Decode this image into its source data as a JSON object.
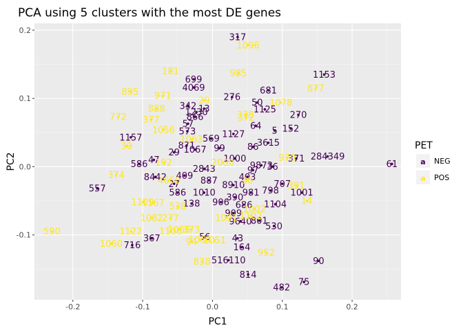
{
  "chart_data": {
    "type": "scatter",
    "title": "PCA using 5 clusters with the most DE genes",
    "xlabel": "PC1",
    "ylabel": "PC2",
    "xlim": [
      -0.255,
      0.27
    ],
    "ylim": [
      -0.195,
      0.21
    ],
    "x_ticks": [
      -0.2,
      -0.1,
      0.0,
      0.1,
      0.2
    ],
    "x_tick_labels": [
      "-0.2",
      "-0.1",
      "0.0",
      "0.1",
      "0.2"
    ],
    "y_ticks": [
      -0.1,
      0.0,
      0.1,
      0.2
    ],
    "y_tick_labels": [
      "-0.1",
      "0.0",
      "0.1",
      "0.2"
    ],
    "grid": true,
    "legend": {
      "title": "PET",
      "position": "right"
    },
    "colors": {
      "NEG": "#440154",
      "POS": "#fde725",
      "panel": "#ebebeb",
      "grid_major": "#ffffff",
      "grid_minor": "#f5f5f5"
    },
    "series": [
      {
        "name": "NEG",
        "points": [
          {
            "x": 0.036,
            "y": 0.19,
            "label": "317"
          },
          {
            "x": 0.16,
            "y": 0.135,
            "label": "1153"
          },
          {
            "x": -0.027,
            "y": 0.128,
            "label": "699"
          },
          {
            "x": -0.027,
            "y": 0.116,
            "label": "4069"
          },
          {
            "x": 0.028,
            "y": 0.102,
            "label": "276"
          },
          {
            "x": 0.08,
            "y": 0.112,
            "label": "681"
          },
          {
            "x": 0.064,
            "y": 0.094,
            "label": "50"
          },
          {
            "x": -0.035,
            "y": 0.089,
            "label": "342"
          },
          {
            "x": -0.012,
            "y": 0.085,
            "label": "13"
          },
          {
            "x": -0.023,
            "y": 0.08,
            "label": "1230"
          },
          {
            "x": 0.075,
            "y": 0.084,
            "label": "1125"
          },
          {
            "x": 0.123,
            "y": 0.076,
            "label": "270"
          },
          {
            "x": -0.025,
            "y": 0.073,
            "label": "866"
          },
          {
            "x": -0.035,
            "y": 0.063,
            "label": "57"
          },
          {
            "x": 0.062,
            "y": 0.06,
            "label": "64"
          },
          {
            "x": 0.112,
            "y": 0.056,
            "label": "152"
          },
          {
            "x": 0.089,
            "y": 0.053,
            "label": "5"
          },
          {
            "x": -0.036,
            "y": 0.052,
            "label": "573"
          },
          {
            "x": 0.03,
            "y": 0.048,
            "label": "1127"
          },
          {
            "x": -0.117,
            "y": 0.043,
            "label": "1157"
          },
          {
            "x": -0.002,
            "y": 0.041,
            "label": "569"
          },
          {
            "x": -0.037,
            "y": 0.031,
            "label": "871"
          },
          {
            "x": 0.08,
            "y": 0.035,
            "label": "3615"
          },
          {
            "x": 0.058,
            "y": 0.029,
            "label": "86"
          },
          {
            "x": -0.025,
            "y": 0.025,
            "label": "1067"
          },
          {
            "x": 0.01,
            "y": 0.027,
            "label": "99"
          },
          {
            "x": -0.055,
            "y": 0.021,
            "label": "29"
          },
          {
            "x": 0.032,
            "y": 0.012,
            "label": "1000"
          },
          {
            "x": 0.165,
            "y": 0.015,
            "label": "284349"
          },
          {
            "x": 0.12,
            "y": 0.012,
            "label": "371"
          },
          {
            "x": 0.257,
            "y": 0.004,
            "label": "61"
          },
          {
            "x": -0.084,
            "y": 0.01,
            "label": "47"
          },
          {
            "x": -0.105,
            "y": 0.004,
            "label": "586"
          },
          {
            "x": 0.07,
            "y": 0.002,
            "label": "9873"
          },
          {
            "x": 0.086,
            "y": 0.0,
            "label": "36"
          },
          {
            "x": -0.012,
            "y": -0.003,
            "label": "2843"
          },
          {
            "x": 0.058,
            "y": -0.005,
            "label": "97"
          },
          {
            "x": -0.082,
            "y": -0.015,
            "label": "8442"
          },
          {
            "x": -0.04,
            "y": -0.013,
            "label": "409"
          },
          {
            "x": -0.055,
            "y": -0.025,
            "label": "27"
          },
          {
            "x": -0.165,
            "y": -0.032,
            "label": "557"
          },
          {
            "x": -0.005,
            "y": -0.02,
            "label": "887"
          },
          {
            "x": 0.05,
            "y": -0.015,
            "label": "403"
          },
          {
            "x": 0.03,
            "y": -0.027,
            "label": "8910"
          },
          {
            "x": 0.083,
            "y": -0.035,
            "label": "798"
          },
          {
            "x": 0.1,
            "y": -0.025,
            "label": "707"
          },
          {
            "x": 0.128,
            "y": -0.038,
            "label": "1001"
          },
          {
            "x": 0.055,
            "y": -0.038,
            "label": "981"
          },
          {
            "x": -0.05,
            "y": -0.038,
            "label": "586"
          },
          {
            "x": -0.012,
            "y": -0.038,
            "label": "1010"
          },
          {
            "x": 0.032,
            "y": -0.045,
            "label": "390"
          },
          {
            "x": 0.09,
            "y": -0.055,
            "label": "1104"
          },
          {
            "x": -0.03,
            "y": -0.054,
            "label": "138"
          },
          {
            "x": 0.012,
            "y": -0.052,
            "label": "906"
          },
          {
            "x": 0.045,
            "y": -0.056,
            "label": "686"
          },
          {
            "x": 0.03,
            "y": -0.068,
            "label": "909"
          },
          {
            "x": 0.04,
            "y": -0.08,
            "label": "9640"
          },
          {
            "x": 0.067,
            "y": -0.079,
            "label": "801"
          },
          {
            "x": 0.088,
            "y": -0.087,
            "label": "530"
          },
          {
            "x": -0.087,
            "y": -0.105,
            "label": "367"
          },
          {
            "x": -0.011,
            "y": -0.103,
            "label": "56"
          },
          {
            "x": 0.036,
            "y": -0.105,
            "label": "43"
          },
          {
            "x": -0.115,
            "y": -0.115,
            "label": "716"
          },
          {
            "x": 0.042,
            "y": -0.118,
            "label": "164"
          },
          {
            "x": 0.023,
            "y": -0.137,
            "label": "516110"
          },
          {
            "x": 0.152,
            "y": -0.138,
            "label": "90"
          },
          {
            "x": 0.051,
            "y": -0.158,
            "label": "814"
          },
          {
            "x": 0.131,
            "y": -0.169,
            "label": "75"
          },
          {
            "x": 0.099,
            "y": -0.177,
            "label": "482"
          }
        ]
      },
      {
        "name": "POS",
        "points": [
          {
            "x": 0.051,
            "y": 0.178,
            "label": "1096"
          },
          {
            "x": -0.06,
            "y": 0.14,
            "label": "181"
          },
          {
            "x": 0.037,
            "y": 0.137,
            "label": "985"
          },
          {
            "x": -0.118,
            "y": 0.11,
            "label": "895"
          },
          {
            "x": -0.071,
            "y": 0.104,
            "label": "971"
          },
          {
            "x": 0.148,
            "y": 0.115,
            "label": "877"
          },
          {
            "x": -0.012,
            "y": 0.097,
            "label": "29"
          },
          {
            "x": 0.098,
            "y": 0.094,
            "label": "1078"
          },
          {
            "x": -0.08,
            "y": 0.085,
            "label": "888"
          },
          {
            "x": -0.135,
            "y": 0.073,
            "label": "772"
          },
          {
            "x": -0.088,
            "y": 0.069,
            "label": "377"
          },
          {
            "x": 0.047,
            "y": 0.076,
            "label": "378"
          },
          {
            "x": 0.048,
            "y": 0.072,
            "label": "372"
          },
          {
            "x": -0.07,
            "y": 0.054,
            "label": "1056"
          },
          {
            "x": -0.123,
            "y": 0.03,
            "label": "39"
          },
          {
            "x": -0.03,
            "y": 0.04,
            "label": "1063"
          },
          {
            "x": -0.07,
            "y": 0.006,
            "label": "192"
          },
          {
            "x": 0.015,
            "y": 0.006,
            "label": "2030"
          },
          {
            "x": 0.107,
            "y": 0.013,
            "label": "970"
          },
          {
            "x": -0.138,
            "y": -0.012,
            "label": "374"
          },
          {
            "x": -0.062,
            "y": -0.02,
            "label": "4650"
          },
          {
            "x": 0.05,
            "y": -0.02,
            "label": "30"
          },
          {
            "x": 0.12,
            "y": -0.028,
            "label": "391"
          },
          {
            "x": -0.085,
            "y": -0.053,
            "label": "1167"
          },
          {
            "x": -0.1,
            "y": -0.052,
            "label": "1109"
          },
          {
            "x": -0.05,
            "y": -0.058,
            "label": "538"
          },
          {
            "x": 0.135,
            "y": -0.05,
            "label": "14"
          },
          {
            "x": 0.06,
            "y": -0.062,
            "label": "1002"
          },
          {
            "x": -0.087,
            "y": -0.075,
            "label": "1082"
          },
          {
            "x": -0.06,
            "y": -0.075,
            "label": "277"
          },
          {
            "x": 0.055,
            "y": -0.072,
            "label": "1102"
          },
          {
            "x": 0.02,
            "y": -0.075,
            "label": "1091"
          },
          {
            "x": -0.117,
            "y": -0.095,
            "label": "1122"
          },
          {
            "x": -0.048,
            "y": -0.092,
            "label": "1066"
          },
          {
            "x": -0.03,
            "y": -0.092,
            "label": "373"
          },
          {
            "x": -0.23,
            "y": -0.095,
            "label": "590"
          },
          {
            "x": -0.06,
            "y": -0.095,
            "label": "1106"
          },
          {
            "x": -0.018,
            "y": -0.107,
            "label": "1064"
          },
          {
            "x": -0.145,
            "y": -0.113,
            "label": "1060"
          },
          {
            "x": -0.03,
            "y": -0.11,
            "label": "94"
          },
          {
            "x": 0.003,
            "y": -0.108,
            "label": "1051"
          },
          {
            "x": 0.077,
            "y": -0.126,
            "label": "952"
          },
          {
            "x": -0.015,
            "y": -0.139,
            "label": "838"
          }
        ]
      }
    ]
  }
}
